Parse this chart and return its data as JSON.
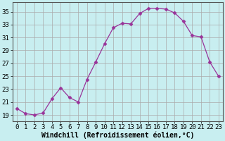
{
  "x": [
    0,
    1,
    2,
    3,
    4,
    5,
    6,
    7,
    8,
    9,
    10,
    11,
    12,
    13,
    14,
    15,
    16,
    17,
    18,
    19,
    20,
    21,
    22,
    23
  ],
  "y": [
    20.0,
    19.2,
    19.0,
    19.3,
    21.5,
    23.2,
    21.7,
    21.0,
    24.5,
    27.2,
    30.0,
    32.5,
    33.2,
    33.1,
    34.7,
    35.5,
    35.5,
    35.4,
    34.8,
    33.5,
    31.3,
    31.1,
    27.2,
    25.0
  ],
  "line_color": "#993399",
  "marker": "D",
  "marker_size": 2.5,
  "bg_color": "#c8eef0",
  "grid_color": "#aaaaaa",
  "xlabel": "Windchill (Refroidissement éolien,°C)",
  "xlabel_fontsize": 7,
  "tick_fontsize": 6.5,
  "xlim": [
    -0.5,
    23.5
  ],
  "ylim": [
    18.0,
    36.5
  ],
  "yticks": [
    19,
    21,
    23,
    25,
    27,
    29,
    31,
    33,
    35
  ],
  "xticks": [
    0,
    1,
    2,
    3,
    4,
    5,
    6,
    7,
    8,
    9,
    10,
    11,
    12,
    13,
    14,
    15,
    16,
    17,
    18,
    19,
    20,
    21,
    22,
    23
  ]
}
